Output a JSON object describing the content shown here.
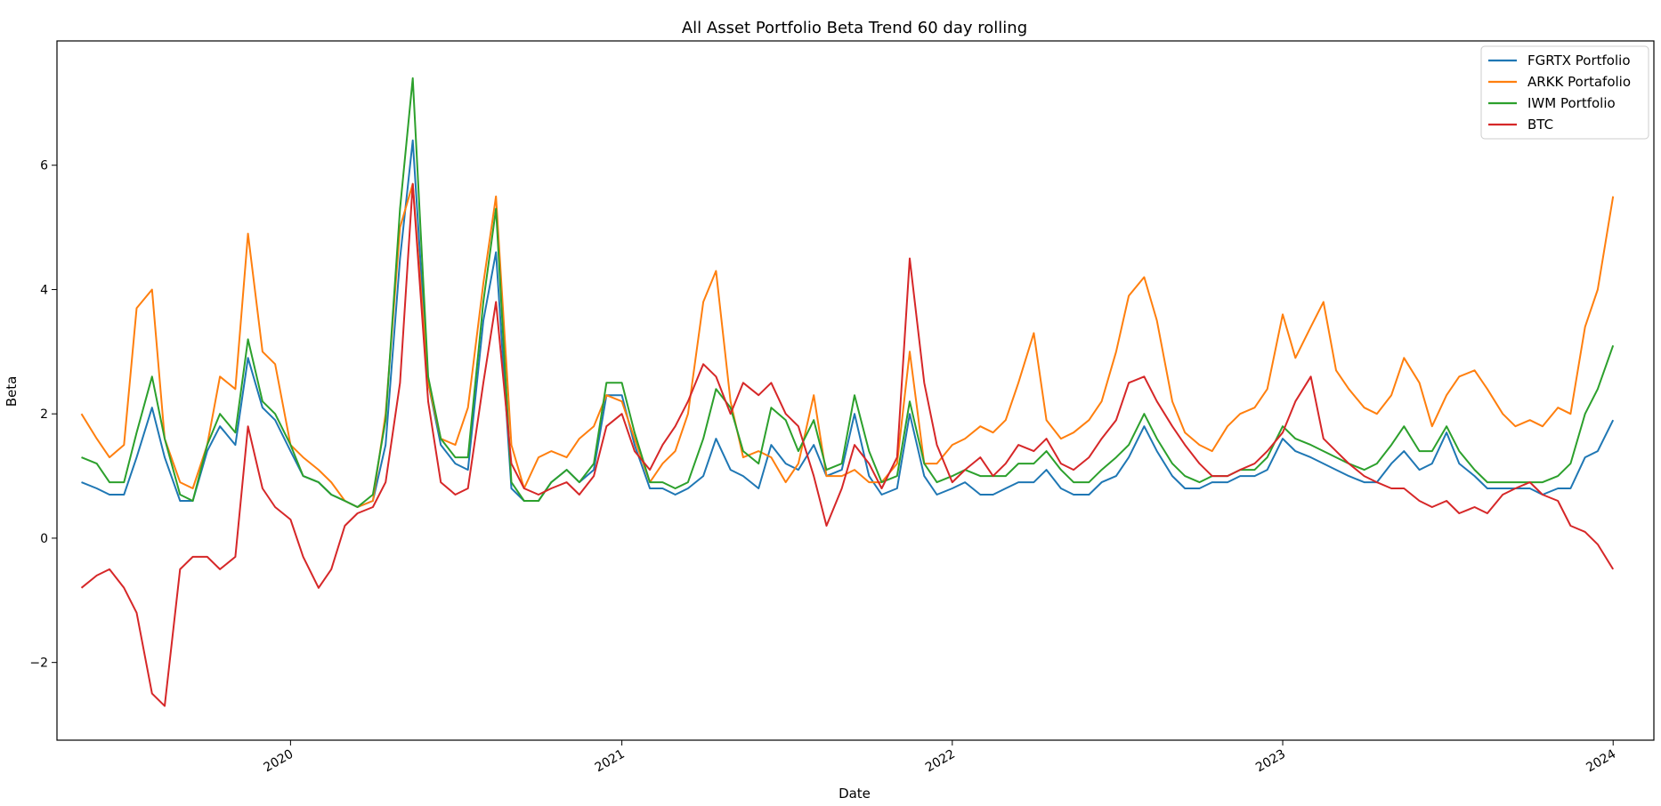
{
  "chart_data": {
    "type": "line",
    "title": "All Asset Portfolio Beta Trend 60 day rolling",
    "xlabel": "Date",
    "ylabel": "Beta",
    "xlim": [
      "2019-04-18",
      "2024-02-15"
    ],
    "ylim": [
      -3.25,
      8.0
    ],
    "grid": false,
    "legend_position": "top-right",
    "x_ticks": [
      "2020-01-01",
      "2021-01-01",
      "2022-01-01",
      "2023-01-01",
      "2024-01-01"
    ],
    "x_tick_labels": [
      "2020",
      "2021",
      "2022",
      "2023",
      "2024"
    ],
    "y_ticks": [
      -2,
      0,
      2,
      4,
      6
    ],
    "y_tick_labels": [
      "−2",
      "0",
      "2",
      "4",
      "6"
    ],
    "x": [
      "2019-05-15",
      "2019-06-01",
      "2019-06-15",
      "2019-07-01",
      "2019-07-15",
      "2019-08-01",
      "2019-08-15",
      "2019-09-01",
      "2019-09-15",
      "2019-10-01",
      "2019-10-15",
      "2019-11-01",
      "2019-11-15",
      "2019-12-01",
      "2019-12-15",
      "2020-01-01",
      "2020-01-15",
      "2020-02-01",
      "2020-02-15",
      "2020-03-01",
      "2020-03-15",
      "2020-04-01",
      "2020-04-15",
      "2020-05-01",
      "2020-05-15",
      "2020-06-01",
      "2020-06-15",
      "2020-07-01",
      "2020-07-15",
      "2020-08-01",
      "2020-08-15",
      "2020-09-01",
      "2020-09-15",
      "2020-10-01",
      "2020-10-15",
      "2020-11-01",
      "2020-11-15",
      "2020-12-01",
      "2020-12-15",
      "2021-01-01",
      "2021-01-15",
      "2021-02-01",
      "2021-02-15",
      "2021-03-01",
      "2021-03-15",
      "2021-04-01",
      "2021-04-15",
      "2021-05-01",
      "2021-05-15",
      "2021-06-01",
      "2021-06-15",
      "2021-07-01",
      "2021-07-15",
      "2021-08-01",
      "2021-08-15",
      "2021-09-01",
      "2021-09-15",
      "2021-10-01",
      "2021-10-15",
      "2021-11-01",
      "2021-11-15",
      "2021-12-01",
      "2021-12-15",
      "2022-01-01",
      "2022-01-15",
      "2022-02-01",
      "2022-02-15",
      "2022-03-01",
      "2022-03-15",
      "2022-04-01",
      "2022-04-15",
      "2022-05-01",
      "2022-05-15",
      "2022-06-01",
      "2022-06-15",
      "2022-07-01",
      "2022-07-15",
      "2022-08-01",
      "2022-08-15",
      "2022-09-01",
      "2022-09-15",
      "2022-10-01",
      "2022-10-15",
      "2022-11-01",
      "2022-11-15",
      "2022-12-01",
      "2022-12-15",
      "2023-01-01",
      "2023-01-15",
      "2023-02-01",
      "2023-02-15",
      "2023-03-01",
      "2023-03-15",
      "2023-04-01",
      "2023-04-15",
      "2023-05-01",
      "2023-05-15",
      "2023-06-01",
      "2023-06-15",
      "2023-07-01",
      "2023-07-15",
      "2023-08-01",
      "2023-08-15",
      "2023-09-01",
      "2023-09-15",
      "2023-10-01",
      "2023-10-15",
      "2023-11-01",
      "2023-11-15",
      "2023-12-01",
      "2023-12-15",
      "2024-01-01"
    ],
    "series": [
      {
        "name": "FGRTX Portfolio",
        "color": "#1f77b4",
        "values": [
          0.9,
          0.8,
          0.7,
          0.7,
          1.3,
          2.1,
          1.3,
          0.6,
          0.6,
          1.4,
          1.8,
          1.5,
          2.9,
          2.1,
          1.9,
          1.4,
          1.0,
          0.9,
          0.7,
          0.6,
          0.5,
          0.6,
          1.5,
          4.5,
          6.4,
          2.5,
          1.5,
          1.2,
          1.1,
          3.5,
          4.6,
          0.8,
          0.6,
          0.6,
          0.9,
          1.1,
          0.9,
          1.1,
          2.3,
          2.3,
          1.5,
          0.8,
          0.8,
          0.7,
          0.8,
          1.0,
          1.6,
          1.1,
          1.0,
          0.8,
          1.5,
          1.2,
          1.1,
          1.5,
          1.0,
          1.1,
          2.0,
          1.0,
          0.7,
          0.8,
          2.0,
          1.0,
          0.7,
          0.8,
          0.9,
          0.7,
          0.7,
          0.8,
          0.9,
          0.9,
          1.1,
          0.8,
          0.7,
          0.7,
          0.9,
          1.0,
          1.3,
          1.8,
          1.4,
          1.0,
          0.8,
          0.8,
          0.9,
          0.9,
          1.0,
          1.0,
          1.1,
          1.6,
          1.4,
          1.3,
          1.2,
          1.1,
          1.0,
          0.9,
          0.9,
          1.2,
          1.4,
          1.1,
          1.2,
          1.7,
          1.2,
          1.0,
          0.8,
          0.8,
          0.8,
          0.8,
          0.7,
          0.8,
          0.8,
          1.3,
          1.4,
          1.9
        ]
      },
      {
        "name": "ARKK Portafolio",
        "color": "#ff7f0e",
        "values": [
          2.0,
          1.6,
          1.3,
          1.5,
          3.7,
          4.0,
          1.6,
          0.9,
          0.8,
          1.5,
          2.6,
          2.4,
          4.9,
          3.0,
          2.8,
          1.5,
          1.3,
          1.1,
          0.9,
          0.6,
          0.5,
          0.6,
          2.0,
          5.0,
          5.7,
          2.5,
          1.6,
          1.5,
          2.1,
          4.1,
          5.5,
          1.5,
          0.8,
          1.3,
          1.4,
          1.3,
          1.6,
          1.8,
          2.3,
          2.2,
          1.6,
          0.9,
          1.2,
          1.4,
          2.0,
          3.8,
          4.3,
          2.2,
          1.3,
          1.4,
          1.3,
          0.9,
          1.2,
          2.3,
          1.0,
          1.0,
          1.1,
          0.9,
          0.9,
          1.2,
          3.0,
          1.2,
          1.2,
          1.5,
          1.6,
          1.8,
          1.7,
          1.9,
          2.5,
          3.3,
          1.9,
          1.6,
          1.7,
          1.9,
          2.2,
          3.0,
          3.9,
          4.2,
          3.5,
          2.2,
          1.7,
          1.5,
          1.4,
          1.8,
          2.0,
          2.1,
          2.4,
          3.6,
          2.9,
          3.4,
          3.8,
          2.7,
          2.4,
          2.1,
          2.0,
          2.3,
          2.9,
          2.5,
          1.8,
          2.3,
          2.6,
          2.7,
          2.4,
          2.0,
          1.8,
          1.9,
          1.8,
          2.1,
          2.0,
          3.4,
          4.0,
          5.5
        ]
      },
      {
        "name": "IWM Portfolio",
        "color": "#2ca02c",
        "values": [
          1.3,
          1.2,
          0.9,
          0.9,
          1.7,
          2.6,
          1.6,
          0.7,
          0.6,
          1.5,
          2.0,
          1.7,
          3.2,
          2.2,
          2.0,
          1.5,
          1.0,
          0.9,
          0.7,
          0.6,
          0.5,
          0.7,
          1.9,
          5.3,
          7.4,
          2.6,
          1.6,
          1.3,
          1.3,
          3.8,
          5.3,
          0.9,
          0.6,
          0.6,
          0.9,
          1.1,
          0.9,
          1.2,
          2.5,
          2.5,
          1.7,
          0.9,
          0.9,
          0.8,
          0.9,
          1.6,
          2.4,
          2.1,
          1.4,
          1.2,
          2.1,
          1.9,
          1.4,
          1.9,
          1.1,
          1.2,
          2.3,
          1.4,
          0.9,
          1.0,
          2.2,
          1.2,
          0.9,
          1.0,
          1.1,
          1.0,
          1.0,
          1.0,
          1.2,
          1.2,
          1.4,
          1.1,
          0.9,
          0.9,
          1.1,
          1.3,
          1.5,
          2.0,
          1.6,
          1.2,
          1.0,
          0.9,
          1.0,
          1.0,
          1.1,
          1.1,
          1.3,
          1.8,
          1.6,
          1.5,
          1.4,
          1.3,
          1.2,
          1.1,
          1.2,
          1.5,
          1.8,
          1.4,
          1.4,
          1.8,
          1.4,
          1.1,
          0.9,
          0.9,
          0.9,
          0.9,
          0.9,
          1.0,
          1.2,
          2.0,
          2.4,
          3.1
        ]
      },
      {
        "name": "BTC",
        "color": "#d62728",
        "values": [
          -0.8,
          -0.6,
          -0.5,
          -0.8,
          -1.2,
          -2.5,
          -2.7,
          -0.5,
          -0.3,
          -0.3,
          -0.5,
          -0.3,
          1.8,
          0.8,
          0.5,
          0.3,
          -0.3,
          -0.8,
          -0.5,
          0.2,
          0.4,
          0.5,
          0.9,
          2.5,
          5.7,
          2.2,
          0.9,
          0.7,
          0.8,
          2.5,
          3.8,
          1.2,
          0.8,
          0.7,
          0.8,
          0.9,
          0.7,
          1.0,
          1.8,
          2.0,
          1.4,
          1.1,
          1.5,
          1.8,
          2.2,
          2.8,
          2.6,
          2.0,
          2.5,
          2.3,
          2.5,
          2.0,
          1.8,
          1.0,
          0.2,
          0.8,
          1.5,
          1.2,
          0.8,
          1.3,
          4.5,
          2.5,
          1.5,
          0.9,
          1.1,
          1.3,
          1.0,
          1.2,
          1.5,
          1.4,
          1.6,
          1.2,
          1.1,
          1.3,
          1.6,
          1.9,
          2.5,
          2.6,
          2.2,
          1.8,
          1.5,
          1.2,
          1.0,
          1.0,
          1.1,
          1.2,
          1.4,
          1.7,
          2.2,
          2.6,
          1.6,
          1.4,
          1.2,
          1.0,
          0.9,
          0.8,
          0.8,
          0.6,
          0.5,
          0.6,
          0.4,
          0.5,
          0.4,
          0.7,
          0.8,
          0.9,
          0.7,
          0.6,
          0.2,
          0.1,
          -0.1,
          -0.5
        ]
      }
    ]
  }
}
